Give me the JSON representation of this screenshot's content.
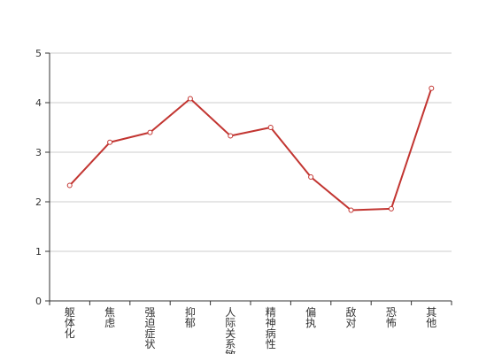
{
  "chart_data": {
    "type": "line",
    "categories": [
      "躯体化",
      "焦虑",
      "强迫症状",
      "抑郁",
      "人际关系敏感",
      "精神病性",
      "偏执",
      "敌对",
      "恐怖",
      "其他"
    ],
    "series": [
      {
        "values": [
          2.33,
          3.2,
          3.4,
          4.08,
          3.33,
          3.5,
          2.5,
          1.83,
          1.86,
          4.29
        ]
      }
    ],
    "ylim": [
      0,
      5
    ],
    "yticks": [
      0,
      1,
      2,
      3,
      4,
      5
    ],
    "grid": true,
    "colors": {
      "line": "#c23531",
      "grid": "#cccccc",
      "axis": "#333333"
    }
  }
}
